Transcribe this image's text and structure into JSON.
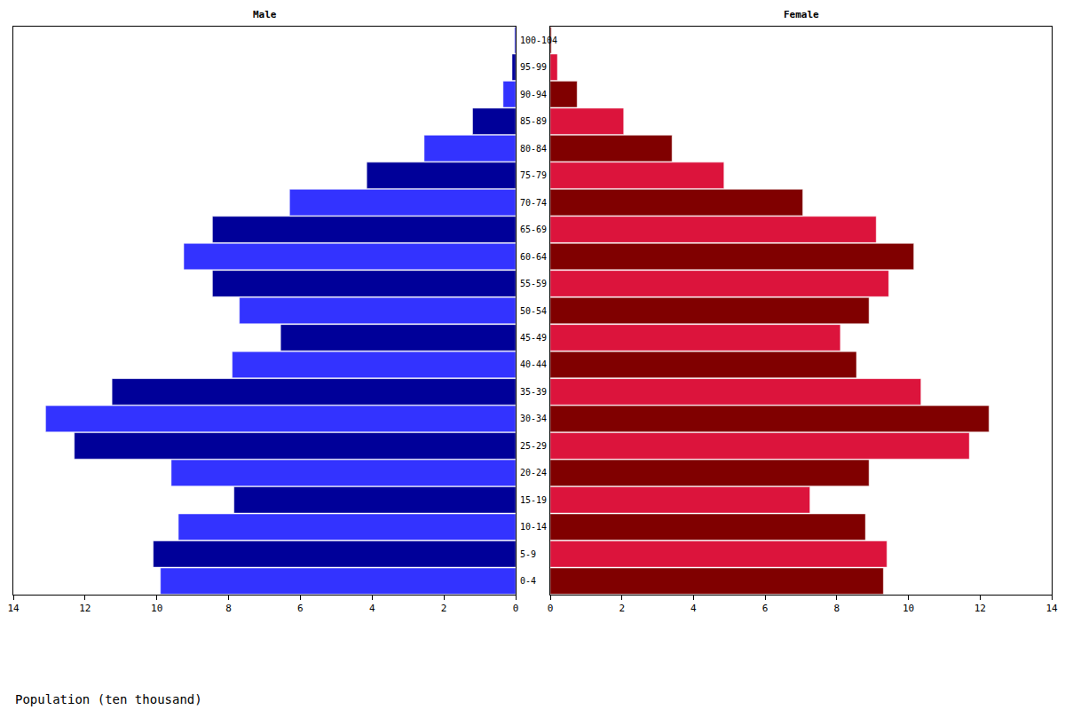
{
  "chart_data": [
    {
      "type": "bar",
      "title": "Male",
      "orientation": "horizontal",
      "xlabel": "Population (ten thousand)",
      "categories": [
        "0-4",
        "5-9",
        "10-14",
        "15-19",
        "20-24",
        "25-29",
        "30-34",
        "35-39",
        "40-44",
        "45-49",
        "50-54",
        "55-59",
        "60-64",
        "65-69",
        "70-74",
        "75-79",
        "80-84",
        "85-89",
        "90-94",
        "95-99",
        "100-104"
      ],
      "values": [
        9.9,
        10.1,
        9.4,
        7.85,
        9.6,
        12.3,
        13.1,
        11.25,
        7.9,
        6.55,
        7.7,
        8.45,
        9.25,
        8.45,
        6.3,
        4.15,
        2.55,
        1.2,
        0.35,
        0.1,
        0.03
      ],
      "colors": [
        "#3333ff",
        "#000099",
        "#3333ff",
        "#000099",
        "#3333ff",
        "#000099",
        "#3333ff",
        "#000099",
        "#3333ff",
        "#000099",
        "#3333ff",
        "#000099",
        "#3333ff",
        "#000099",
        "#3333ff",
        "#000099",
        "#3333ff",
        "#000099",
        "#3333ff",
        "#000099",
        "#3333ff"
      ],
      "xlim": [
        14,
        0
      ],
      "xticks": [
        0,
        2,
        4,
        6,
        8,
        10,
        12,
        14
      ],
      "grid": false,
      "tick_labels": "x"
    },
    {
      "type": "bar",
      "title": "Female",
      "orientation": "horizontal",
      "categories": [
        "0-4",
        "5-9",
        "10-14",
        "15-19",
        "20-24",
        "25-29",
        "30-34",
        "35-39",
        "40-44",
        "45-49",
        "50-54",
        "55-59",
        "60-64",
        "65-69",
        "70-74",
        "75-79",
        "80-84",
        "85-89",
        "90-94",
        "95-99",
        "100-104"
      ],
      "values": [
        9.3,
        9.4,
        8.8,
        7.25,
        8.9,
        11.7,
        12.25,
        10.35,
        8.55,
        8.1,
        8.9,
        9.45,
        10.15,
        9.1,
        7.05,
        4.85,
        3.4,
        2.05,
        0.75,
        0.2,
        0.03
      ],
      "colors": [
        "#800000",
        "#dc143c",
        "#800000",
        "#dc143c",
        "#800000",
        "#dc143c",
        "#800000",
        "#dc143c",
        "#800000",
        "#dc143c",
        "#800000",
        "#dc143c",
        "#800000",
        "#dc143c",
        "#800000",
        "#dc143c",
        "#800000",
        "#dc143c",
        "#800000",
        "#dc143c",
        "#800000"
      ],
      "xlim": [
        0,
        14
      ],
      "xticks": [
        0,
        2,
        4,
        6,
        8,
        10,
        12,
        14
      ],
      "grid": false,
      "tick_labels": "x"
    }
  ]
}
